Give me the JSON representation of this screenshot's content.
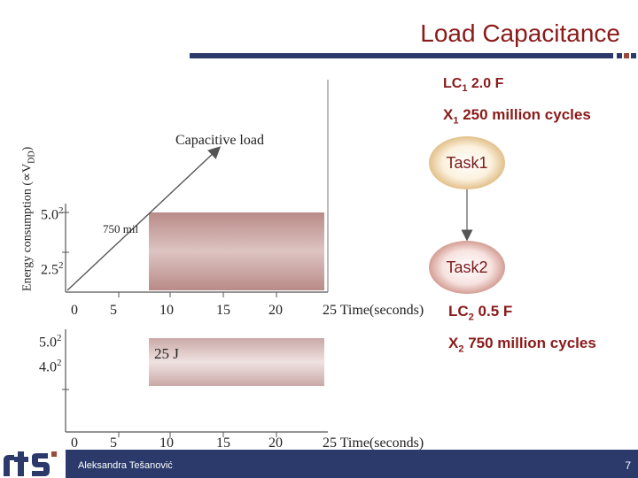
{
  "slide": {
    "title": "Load Capacitance",
    "author": "Aleksandra Tešanović",
    "page_number": "7"
  },
  "params": {
    "lc1_base": "LC",
    "lc1_sub": "1",
    "lc1_value": " 2.0 F",
    "x1_base": "X",
    "x1_sub": "1",
    "x1_value": " 250 million cycles",
    "lc2_base": "LC",
    "lc2_sub": "2",
    "lc2_value": " 0.5 F",
    "x2_base": "X",
    "x2_sub": "2",
    "x2_value": " 750 million cycles"
  },
  "tasks": {
    "task1": "Task1",
    "task2": "Task2"
  },
  "top_chart": {
    "ylabel": "Energy consumption (∝V",
    "ylabel_sub": "DD",
    "ylabel_end": ")",
    "y_ticks": [
      {
        "base": "5.0",
        "exp": "2"
      },
      {
        "base": "2.5",
        "exp": "2"
      }
    ],
    "x_ticks": [
      "0",
      "5",
      "10",
      "15",
      "20",
      "25 Time(seconds)"
    ],
    "annotation_capacitive": "Capacitive load",
    "annotation_750": "750 mil",
    "colors": {
      "band": "#c9a9a7",
      "axis": "#555555",
      "title": "#8b1a1a"
    }
  },
  "bottom_chart": {
    "y_ticks": [
      {
        "base": "5.0",
        "exp": "2"
      },
      {
        "base": "4.0",
        "exp": "2"
      }
    ],
    "x_ticks": [
      "0",
      "5",
      "10",
      "15",
      "20",
      "25 Time(seconds)"
    ],
    "annotation_energy": "25 J"
  }
}
